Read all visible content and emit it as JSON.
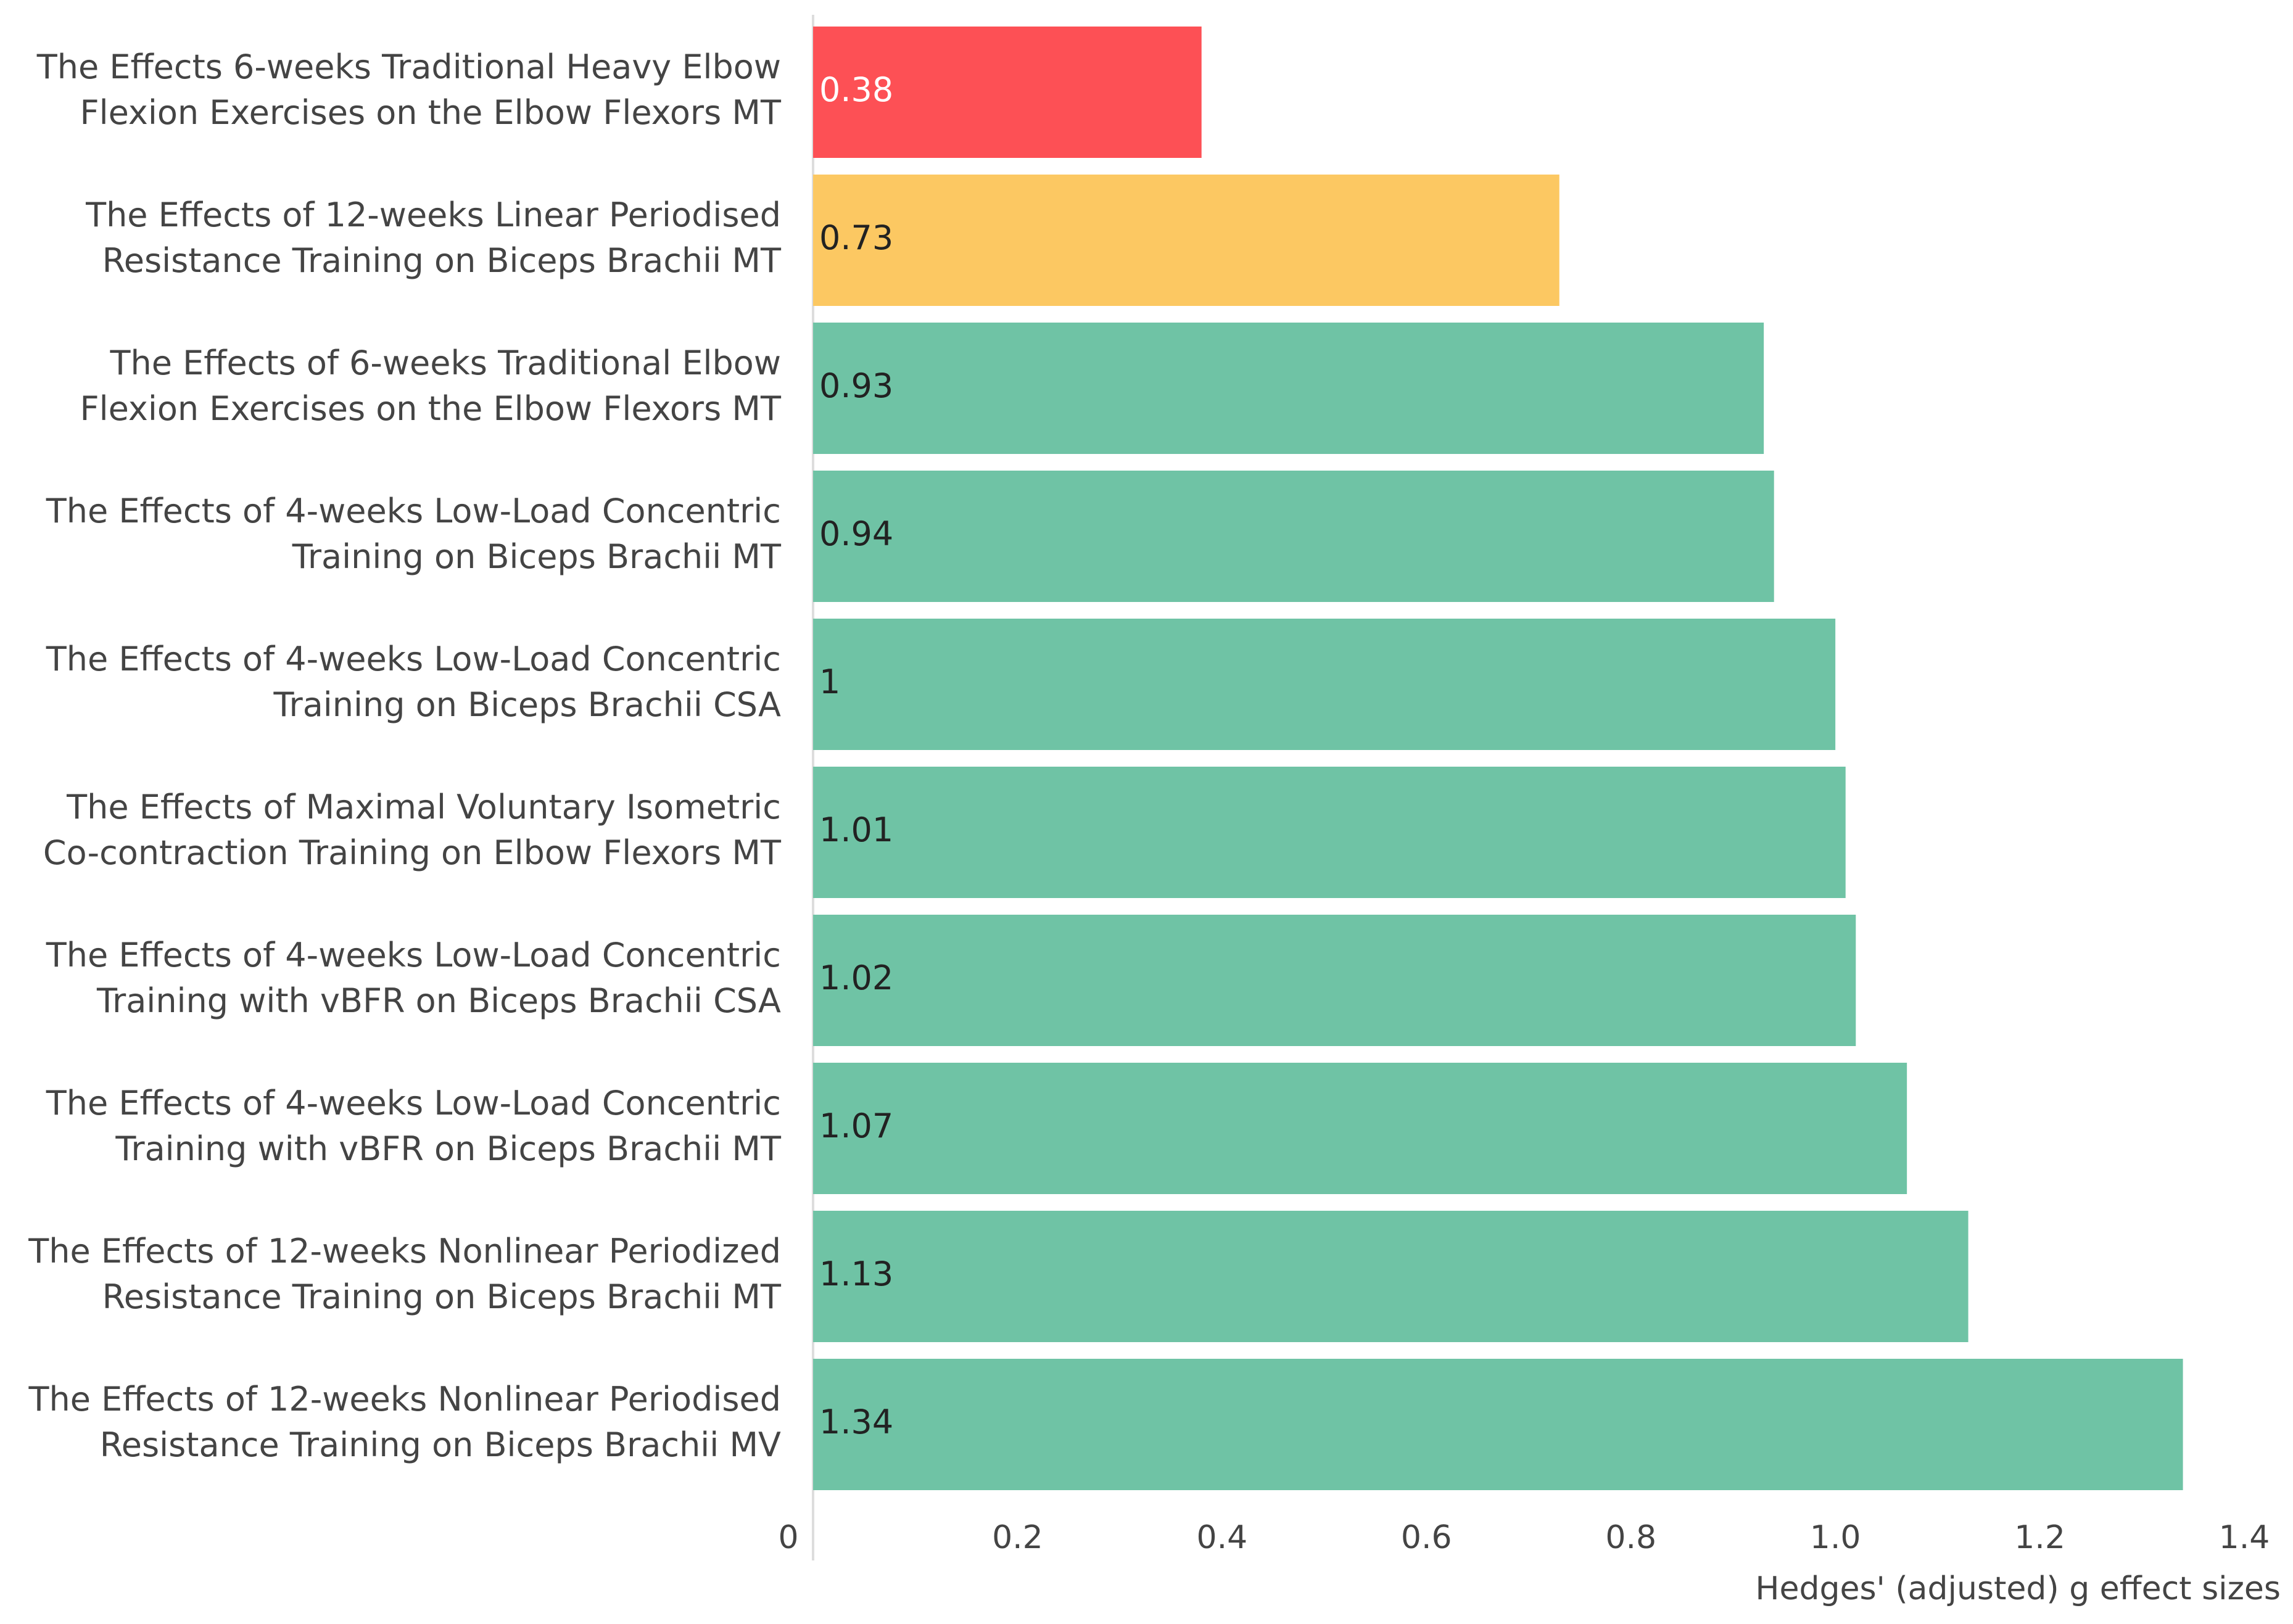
{
  "chart_data": {
    "type": "bar",
    "orientation": "horizontal",
    "categories": [
      [
        "The Effects 6-weeks Traditional Heavy Elbow",
        "Flexion Exercises on the Elbow Flexors MT"
      ],
      [
        "The Effects of 12-weeks Linear Periodised",
        "Resistance Training on Biceps Brachii MT"
      ],
      [
        "The Effects of 6-weeks Traditional Elbow",
        "Flexion Exercises on the Elbow Flexors MT"
      ],
      [
        "The Effects of 4-weeks Low-Load Concentric",
        "Training on Biceps Brachii MT"
      ],
      [
        "The Effects of 4-weeks Low-Load Concentric",
        "Training on Biceps Brachii CSA"
      ],
      [
        "The Effects of Maximal Voluntary Isometric",
        "Co-contraction Training on Elbow Flexors MT"
      ],
      [
        "The Effects of 4-weeks Low-Load Concentric",
        "Training with vBFR on Biceps Brachii CSA"
      ],
      [
        "The Effects of 4-weeks Low-Load Concentric",
        "Training with vBFR on Biceps Brachii MT"
      ],
      [
        "The Effects of 12-weeks Nonlinear Periodized",
        "Resistance Training on Biceps Brachii MT"
      ],
      [
        "The Effects of 12-weeks Nonlinear Periodised",
        "Resistance Training on Biceps Brachii MV"
      ]
    ],
    "values": [
      0.38,
      0.73,
      0.93,
      0.94,
      1,
      1.01,
      1.02,
      1.07,
      1.13,
      1.34
    ],
    "colors": [
      "#fd5055",
      "#fcc862",
      "#6fc3a5",
      "#6fc3a5",
      "#6fc3a5",
      "#6fc3a5",
      "#6fc3a5",
      "#6fc3a5",
      "#6fc3a5",
      "#6fc3a5"
    ],
    "xlim": [
      0,
      1.4
    ],
    "xticks": [
      0,
      0.2,
      0.4,
      0.6,
      0.8,
      {
        "value": 1,
        "label": "1.0"
      },
      1.2,
      1.4
    ],
    "xlabel": "Hedges' (adjusted) g effect sizes"
  }
}
